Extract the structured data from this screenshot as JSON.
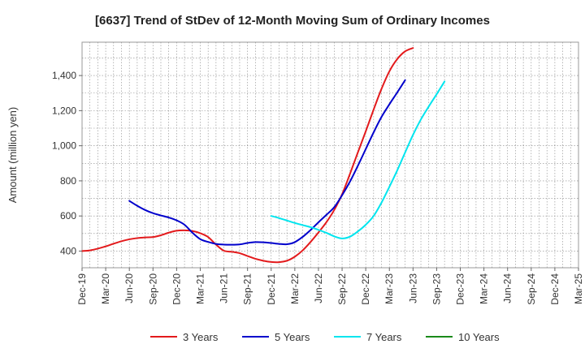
{
  "chart_data": {
    "type": "line",
    "title": "[6637]  Trend of StDev of 12-Month Moving Sum of Ordinary Incomes",
    "xlabel": "",
    "ylabel": "Amount (million yen)",
    "x_ticks": [
      "Dec-19",
      "Mar-20",
      "Jun-20",
      "Sep-20",
      "Dec-20",
      "Mar-21",
      "Jun-21",
      "Sep-21",
      "Dec-21",
      "Mar-22",
      "Jun-22",
      "Sep-22",
      "Dec-22",
      "Mar-23",
      "Jun-23",
      "Sep-23",
      "Dec-23",
      "Mar-24",
      "Jun-24",
      "Sep-24",
      "Dec-24",
      "Mar-25"
    ],
    "y_ticks": [
      400,
      600,
      800,
      1000,
      1200,
      1400
    ],
    "ylim": [
      305,
      1590
    ],
    "grid": true,
    "legend_position": "bottom",
    "series": [
      {
        "name": "3 Years",
        "color": "#e31a1c",
        "start_index": 0,
        "values": [
          400,
          404,
          414,
          427,
          442,
          456,
          467,
          474,
          478,
          480,
          490,
          505,
          516,
          518,
          514,
          502,
          480,
          437,
          402,
          396,
          388,
          372,
          356,
          345,
          338,
          337,
          345,
          368,
          404,
          452,
          506,
          564,
          634,
          724,
          840,
          962,
          1082,
          1206,
          1324,
          1424,
          1494,
          1538,
          1557
        ]
      },
      {
        "name": "5 Years",
        "color": "#0000cc",
        "start_index": 6,
        "values": [
          686,
          658,
          634,
          616,
          603,
          591,
          575,
          550,
          505,
          468,
          452,
          441,
          437,
          436,
          438,
          446,
          451,
          450,
          446,
          441,
          439,
          451,
          481,
          520,
          564,
          606,
          650,
          718,
          796,
          886,
          981,
          1076,
          1164,
          1236,
          1304,
          1374
        ]
      },
      {
        "name": "7 Years",
        "color": "#00e5ee",
        "start_index": 24,
        "values": [
          600,
          588,
          574,
          560,
          548,
          536,
          521,
          504,
          484,
          472,
          482,
          512,
          550,
          600,
          676,
          766,
          860,
          962,
          1062,
          1150,
          1224,
          1294,
          1366
        ]
      },
      {
        "name": "10 Years",
        "color": "#1a8a1a",
        "start_index": 0,
        "values": []
      }
    ]
  }
}
